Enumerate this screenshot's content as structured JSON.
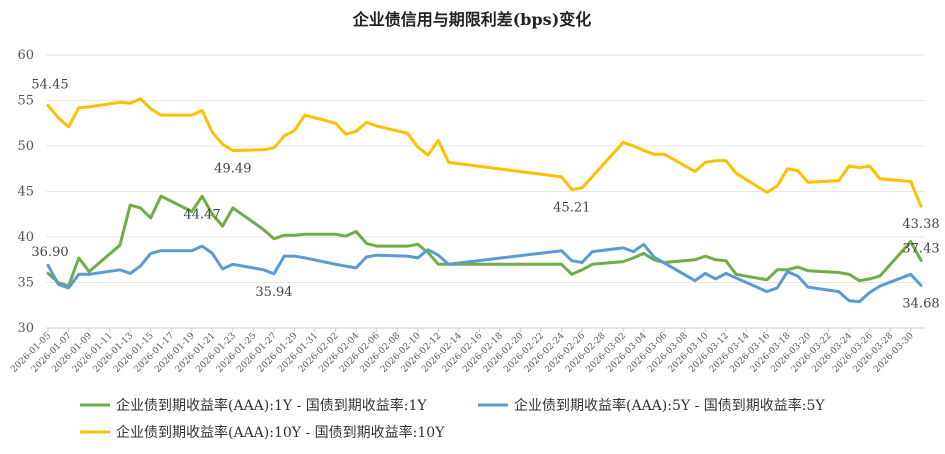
{
  "chart_data": {
    "type": "line",
    "title": "企业债信用与期限利差(bps)变化",
    "xlabel": "",
    "ylabel": "",
    "ylim": [
      30,
      60
    ],
    "yticks": [
      30,
      35,
      40,
      45,
      50,
      55,
      60
    ],
    "grid": true,
    "legend_position": "bottom",
    "x_tick_labels": [
      "2026-01-05",
      "2026-01-07",
      "2026-01-09",
      "2026-01-11",
      "2026-01-13",
      "2026-01-15",
      "2026-01-17",
      "2026-01-19",
      "2026-01-21",
      "2026-01-23",
      "2026-01-25",
      "2026-01-27",
      "2026-01-29",
      "2026-01-31",
      "2026-02-02",
      "2026-02-04",
      "2026-02-06",
      "2026-02-08",
      "2026-02-10",
      "2026-02-12",
      "2026-02-14",
      "2026-02-16",
      "2026-02-18",
      "2026-02-20",
      "2026-02-22",
      "2026-02-24",
      "2026-02-26",
      "2026-02-28",
      "2026-03-02",
      "2026-03-04",
      "2026-03-06",
      "2026-03-08",
      "2026-03-10",
      "2026-03-12",
      "2026-03-14",
      "2026-03-16",
      "2026-03-18",
      "2026-03-20",
      "2026-03-22",
      "2026-03-24",
      "2026-03-26",
      "2026-03-28",
      "2026-03-30"
    ],
    "series": [
      {
        "name": "企业债到期收益率(AAA):1Y - 国债到期收益率:1Y",
        "color": "#70ad47",
        "points": [
          [
            "2026-01-05",
            36.0
          ],
          [
            "2026-01-06",
            35.0
          ],
          [
            "2026-01-07",
            34.6
          ],
          [
            "2026-01-08",
            37.7
          ],
          [
            "2026-01-09",
            36.2
          ],
          [
            "2026-01-12",
            39.1
          ],
          [
            "2026-01-13",
            43.5
          ],
          [
            "2026-01-14",
            43.2
          ],
          [
            "2026-01-15",
            42.1
          ],
          [
            "2026-01-16",
            44.5
          ],
          [
            "2026-01-19",
            42.8
          ],
          [
            "2026-01-20",
            44.47
          ],
          [
            "2026-01-21",
            42.5
          ],
          [
            "2026-01-22",
            41.2
          ],
          [
            "2026-01-23",
            43.2
          ],
          [
            "2026-01-26",
            40.8
          ],
          [
            "2026-01-27",
            39.8
          ],
          [
            "2026-01-28",
            40.2
          ],
          [
            "2026-01-29",
            40.2
          ],
          [
            "2026-01-30",
            40.3
          ],
          [
            "2026-02-02",
            40.3
          ],
          [
            "2026-02-03",
            40.1
          ],
          [
            "2026-02-04",
            40.6
          ],
          [
            "2026-02-05",
            39.3
          ],
          [
            "2026-02-06",
            39.0
          ],
          [
            "2026-02-09",
            39.0
          ],
          [
            "2026-02-10",
            39.2
          ],
          [
            "2026-02-11",
            38.3
          ],
          [
            "2026-02-12",
            37.0
          ],
          [
            "2026-02-24",
            37.0
          ],
          [
            "2026-02-25",
            35.9
          ],
          [
            "2026-02-26",
            36.4
          ],
          [
            "2026-02-27",
            37.0
          ],
          [
            "2026-03-02",
            37.3
          ],
          [
            "2026-03-03",
            37.7
          ],
          [
            "2026-03-04",
            38.2
          ],
          [
            "2026-03-05",
            37.5
          ],
          [
            "2026-03-06",
            37.2
          ],
          [
            "2026-03-09",
            37.5
          ],
          [
            "2026-03-10",
            37.9
          ],
          [
            "2026-03-11",
            37.5
          ],
          [
            "2026-03-12",
            37.4
          ],
          [
            "2026-03-13",
            35.9
          ],
          [
            "2026-03-16",
            35.3
          ],
          [
            "2026-03-17",
            36.4
          ],
          [
            "2026-03-18",
            36.4
          ],
          [
            "2026-03-19",
            36.7
          ],
          [
            "2026-03-20",
            36.3
          ],
          [
            "2026-03-23",
            36.1
          ],
          [
            "2026-03-24",
            35.9
          ],
          [
            "2026-03-25",
            35.2
          ],
          [
            "2026-03-26",
            35.4
          ],
          [
            "2026-03-27",
            35.7
          ],
          [
            "2026-03-30",
            39.5
          ],
          [
            "2026-03-31",
            37.43
          ]
        ]
      },
      {
        "name": "企业债到期收益率(AAA):5Y - 国债到期收益率:5Y",
        "color": "#5b9bd5",
        "points": [
          [
            "2026-01-05",
            36.9
          ],
          [
            "2026-01-06",
            34.8
          ],
          [
            "2026-01-07",
            34.4
          ],
          [
            "2026-01-08",
            35.9
          ],
          [
            "2026-01-09",
            35.9
          ],
          [
            "2026-01-12",
            36.4
          ],
          [
            "2026-01-13",
            36.0
          ],
          [
            "2026-01-14",
            36.8
          ],
          [
            "2026-01-15",
            38.2
          ],
          [
            "2026-01-16",
            38.5
          ],
          [
            "2026-01-19",
            38.5
          ],
          [
            "2026-01-20",
            39.0
          ],
          [
            "2026-01-21",
            38.2
          ],
          [
            "2026-01-22",
            36.5
          ],
          [
            "2026-01-23",
            37.0
          ],
          [
            "2026-01-26",
            36.4
          ],
          [
            "2026-01-27",
            35.94
          ],
          [
            "2026-01-28",
            37.9
          ],
          [
            "2026-01-29",
            37.9
          ],
          [
            "2026-01-30",
            37.7
          ],
          [
            "2026-02-02",
            37.0
          ],
          [
            "2026-02-03",
            36.8
          ],
          [
            "2026-02-04",
            36.6
          ],
          [
            "2026-02-05",
            37.8
          ],
          [
            "2026-02-06",
            38.0
          ],
          [
            "2026-02-09",
            37.9
          ],
          [
            "2026-02-10",
            37.7
          ],
          [
            "2026-02-11",
            38.6
          ],
          [
            "2026-02-12",
            38.0
          ],
          [
            "2026-02-13",
            37.0
          ],
          [
            "2026-02-24",
            38.5
          ],
          [
            "2026-02-25",
            37.4
          ],
          [
            "2026-02-26",
            37.2
          ],
          [
            "2026-02-27",
            38.4
          ],
          [
            "2026-03-02",
            38.8
          ],
          [
            "2026-03-03",
            38.4
          ],
          [
            "2026-03-04",
            39.2
          ],
          [
            "2026-03-05",
            37.8
          ],
          [
            "2026-03-09",
            35.2
          ],
          [
            "2026-03-10",
            36.0
          ],
          [
            "2026-03-11",
            35.4
          ],
          [
            "2026-03-12",
            36.0
          ],
          [
            "2026-03-16",
            34.0
          ],
          [
            "2026-03-17",
            34.4
          ],
          [
            "2026-03-18",
            36.2
          ],
          [
            "2026-03-19",
            35.7
          ],
          [
            "2026-03-20",
            34.5
          ],
          [
            "2026-03-23",
            34.0
          ],
          [
            "2026-03-24",
            33.0
          ],
          [
            "2026-03-25",
            32.9
          ],
          [
            "2026-03-26",
            33.9
          ],
          [
            "2026-03-27",
            34.6
          ],
          [
            "2026-03-30",
            35.9
          ],
          [
            "2026-03-31",
            34.68
          ]
        ]
      },
      {
        "name": "企业债到期收益率(AAA):10Y - 国债到期收益率:10Y",
        "color": "#ffc000",
        "points": [
          [
            "2026-01-05",
            54.45
          ],
          [
            "2026-01-06",
            53.1
          ],
          [
            "2026-01-07",
            52.1
          ],
          [
            "2026-01-08",
            54.2
          ],
          [
            "2026-01-09",
            54.3
          ],
          [
            "2026-01-12",
            54.8
          ],
          [
            "2026-01-13",
            54.7
          ],
          [
            "2026-01-14",
            55.2
          ],
          [
            "2026-01-15",
            54.1
          ],
          [
            "2026-01-16",
            53.4
          ],
          [
            "2026-01-19",
            53.4
          ],
          [
            "2026-01-20",
            53.9
          ],
          [
            "2026-01-21",
            51.5
          ],
          [
            "2026-01-22",
            50.2
          ],
          [
            "2026-01-23",
            49.49
          ],
          [
            "2026-01-26",
            49.6
          ],
          [
            "2026-01-27",
            49.8
          ],
          [
            "2026-01-28",
            51.1
          ],
          [
            "2026-01-29",
            51.7
          ],
          [
            "2026-01-30",
            53.4
          ],
          [
            "2026-02-02",
            52.5
          ],
          [
            "2026-02-03",
            51.3
          ],
          [
            "2026-02-04",
            51.6
          ],
          [
            "2026-02-05",
            52.6
          ],
          [
            "2026-02-06",
            52.2
          ],
          [
            "2026-02-09",
            51.4
          ],
          [
            "2026-02-10",
            49.9
          ],
          [
            "2026-02-11",
            49.0
          ],
          [
            "2026-02-12",
            50.6
          ],
          [
            "2026-02-13",
            48.2
          ],
          [
            "2026-02-24",
            46.6
          ],
          [
            "2026-02-25",
            45.21
          ],
          [
            "2026-02-26",
            45.4
          ],
          [
            "2026-03-02",
            50.4
          ],
          [
            "2026-03-03",
            50.0
          ],
          [
            "2026-03-04",
            49.5
          ],
          [
            "2026-03-05",
            49.1
          ],
          [
            "2026-03-06",
            49.1
          ],
          [
            "2026-03-09",
            47.2
          ],
          [
            "2026-03-10",
            48.2
          ],
          [
            "2026-03-11",
            48.4
          ],
          [
            "2026-03-12",
            48.4
          ],
          [
            "2026-03-13",
            47.0
          ],
          [
            "2026-03-16",
            44.9
          ],
          [
            "2026-03-17",
            45.6
          ],
          [
            "2026-03-18",
            47.5
          ],
          [
            "2026-03-19",
            47.3
          ],
          [
            "2026-03-20",
            46.0
          ],
          [
            "2026-03-23",
            46.2
          ],
          [
            "2026-03-24",
            47.8
          ],
          [
            "2026-03-25",
            47.6
          ],
          [
            "2026-03-26",
            47.8
          ],
          [
            "2026-03-27",
            46.4
          ],
          [
            "2026-03-30",
            46.1
          ],
          [
            "2026-03-31",
            43.38
          ]
        ]
      }
    ],
    "annotations": [
      {
        "text": "54.45",
        "series": 2,
        "x": "2026-01-05",
        "y": 54.45,
        "pos": "above-right"
      },
      {
        "text": "49.49",
        "series": 2,
        "x": "2026-01-23",
        "y": 49.49,
        "pos": "below"
      },
      {
        "text": "45.21",
        "series": 2,
        "x": "2026-02-25",
        "y": 45.21,
        "pos": "below"
      },
      {
        "text": "43.38",
        "series": 2,
        "x": "2026-03-31",
        "y": 43.38,
        "pos": "below"
      },
      {
        "text": "36.90",
        "series": 1,
        "x": "2026-01-05",
        "y": 36.9,
        "pos": "above-left"
      },
      {
        "text": "35.94",
        "series": 1,
        "x": "2026-01-27",
        "y": 35.94,
        "pos": "below"
      },
      {
        "text": "34.68",
        "series": 1,
        "x": "2026-03-31",
        "y": 34.68,
        "pos": "below"
      },
      {
        "text": "44.47",
        "series": 0,
        "x": "2026-01-20",
        "y": 44.47,
        "pos": "below"
      },
      {
        "text": "37.43",
        "series": 0,
        "x": "2026-03-31",
        "y": 37.43,
        "pos": "above"
      }
    ]
  }
}
